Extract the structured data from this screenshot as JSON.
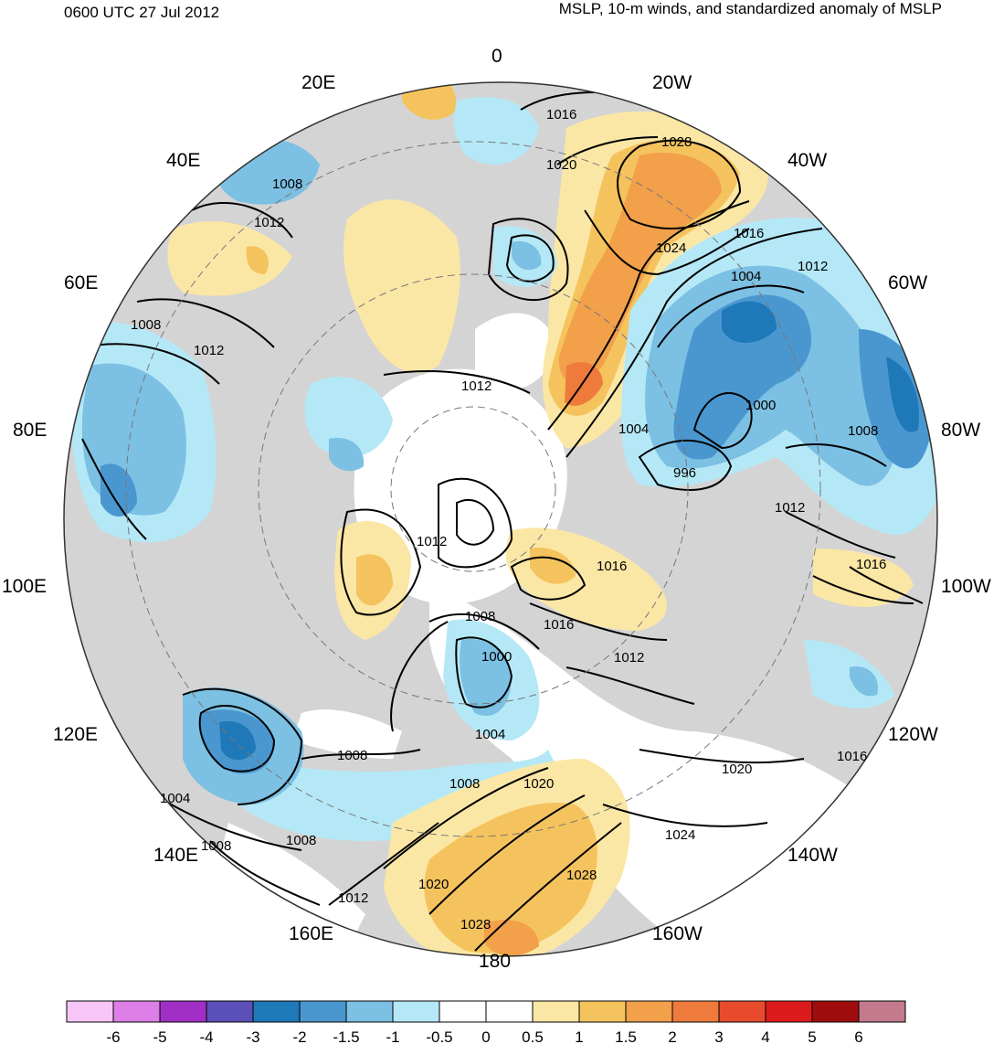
{
  "header": {
    "time_label": "0600 UTC 27 Jul 2012",
    "product_label": "MSLP, 10-m winds, and standardized anomaly of MSLP"
  },
  "map": {
    "projection": "north-polar-stereographic",
    "longitude_labels": [
      {
        "text": "0",
        "lon": 0
      },
      {
        "text": "20W",
        "lon": -20
      },
      {
        "text": "40W",
        "lon": -40
      },
      {
        "text": "60W",
        "lon": -60
      },
      {
        "text": "80W",
        "lon": -80
      },
      {
        "text": "100W",
        "lon": -100
      },
      {
        "text": "120W",
        "lon": -120
      },
      {
        "text": "140W",
        "lon": -140
      },
      {
        "text": "160W",
        "lon": -160
      },
      {
        "text": "180",
        "lon": 180
      },
      {
        "text": "160E",
        "lon": 160
      },
      {
        "text": "140E",
        "lon": 140
      },
      {
        "text": "120E",
        "lon": 120
      },
      {
        "text": "100E",
        "lon": 100
      },
      {
        "text": "80E",
        "lon": 80
      },
      {
        "text": "60E",
        "lon": 60
      },
      {
        "text": "40E",
        "lon": 40
      },
      {
        "text": "20E",
        "lon": 20
      }
    ],
    "isobar_labels": [
      "1016",
      "1028",
      "1020",
      "1024",
      "1016",
      "1012",
      "1004",
      "1008",
      "1012",
      "1008",
      "1012",
      "1012",
      "1000",
      "1008",
      "1004",
      "996",
      "1012",
      "1012",
      "1016",
      "1016",
      "1008",
      "1000",
      "1012",
      "1008",
      "1004",
      "1004",
      "1008",
      "1020",
      "1016",
      "1020",
      "1016",
      "1024",
      "1028",
      "1020",
      "1012",
      "1028",
      "1008",
      "1008"
    ],
    "colors": {
      "land_neutral": "#d4d4d4",
      "coastline": "#555555",
      "isobar": "#000000"
    }
  },
  "colorbar": {
    "ticks": [
      "-6",
      "-5",
      "-4",
      "-3",
      "-2",
      "-1.5",
      "-1",
      "-0.5",
      "0",
      "0.5",
      "1",
      "1.5",
      "2",
      "3",
      "4",
      "5",
      "6"
    ],
    "colors": [
      "#f7c6f7",
      "#de7fe8",
      "#a12fc6",
      "#5b4fb8",
      "#1f78b8",
      "#4a97d0",
      "#7cc0e3",
      "#b5e8f6",
      "#ffffff",
      "#ffffff",
      "#fbe7a5",
      "#f5c35e",
      "#f2a04a",
      "#ee7b3c",
      "#e84b2c",
      "#dc1c1c",
      "#a00d0d",
      "#c27a8c"
    ]
  }
}
